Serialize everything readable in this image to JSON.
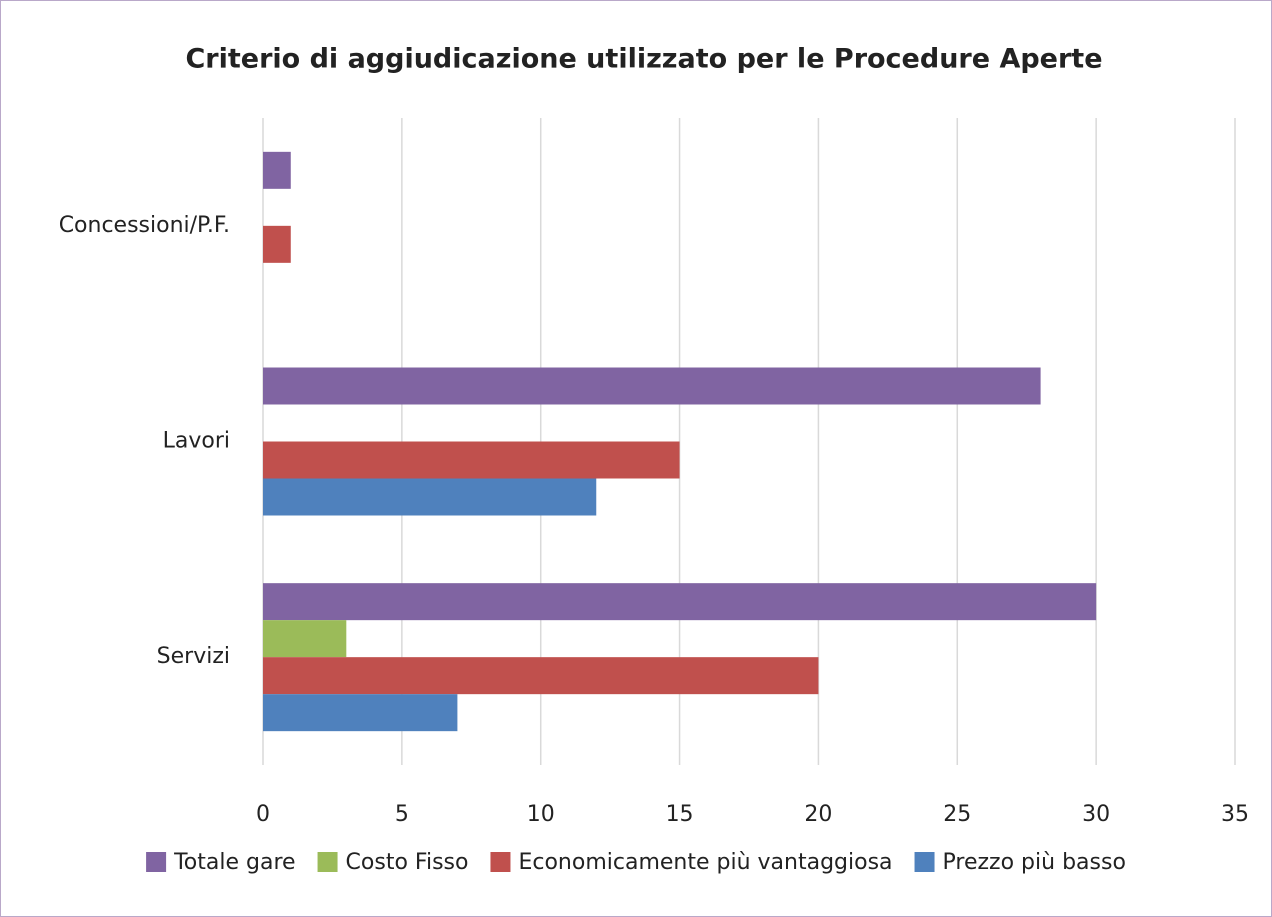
{
  "chart_data": {
    "type": "hbar",
    "title": "Criterio di aggiudicazione utilizzato per le Procedure Aperte",
    "categories": [
      "Concessioni/P.F.",
      "Lavori",
      "Servizi"
    ],
    "series": [
      {
        "name": "Totale gare",
        "color": "#8064a2",
        "values": [
          1,
          28,
          30
        ]
      },
      {
        "name": "Costo Fisso",
        "color": "#9bbb59",
        "values": [
          0,
          0,
          3
        ]
      },
      {
        "name": "Economicamente più vantaggiosa",
        "color": "#c0504d",
        "values": [
          1,
          15,
          20
        ]
      },
      {
        "name": "Prezzo più basso",
        "color": "#4f81bd",
        "values": [
          0,
          12,
          7
        ]
      }
    ],
    "xlim": [
      0,
      35
    ],
    "xticks": [
      0,
      5,
      10,
      15,
      20,
      25,
      30,
      35
    ],
    "grid": true,
    "legend": "bottom"
  }
}
